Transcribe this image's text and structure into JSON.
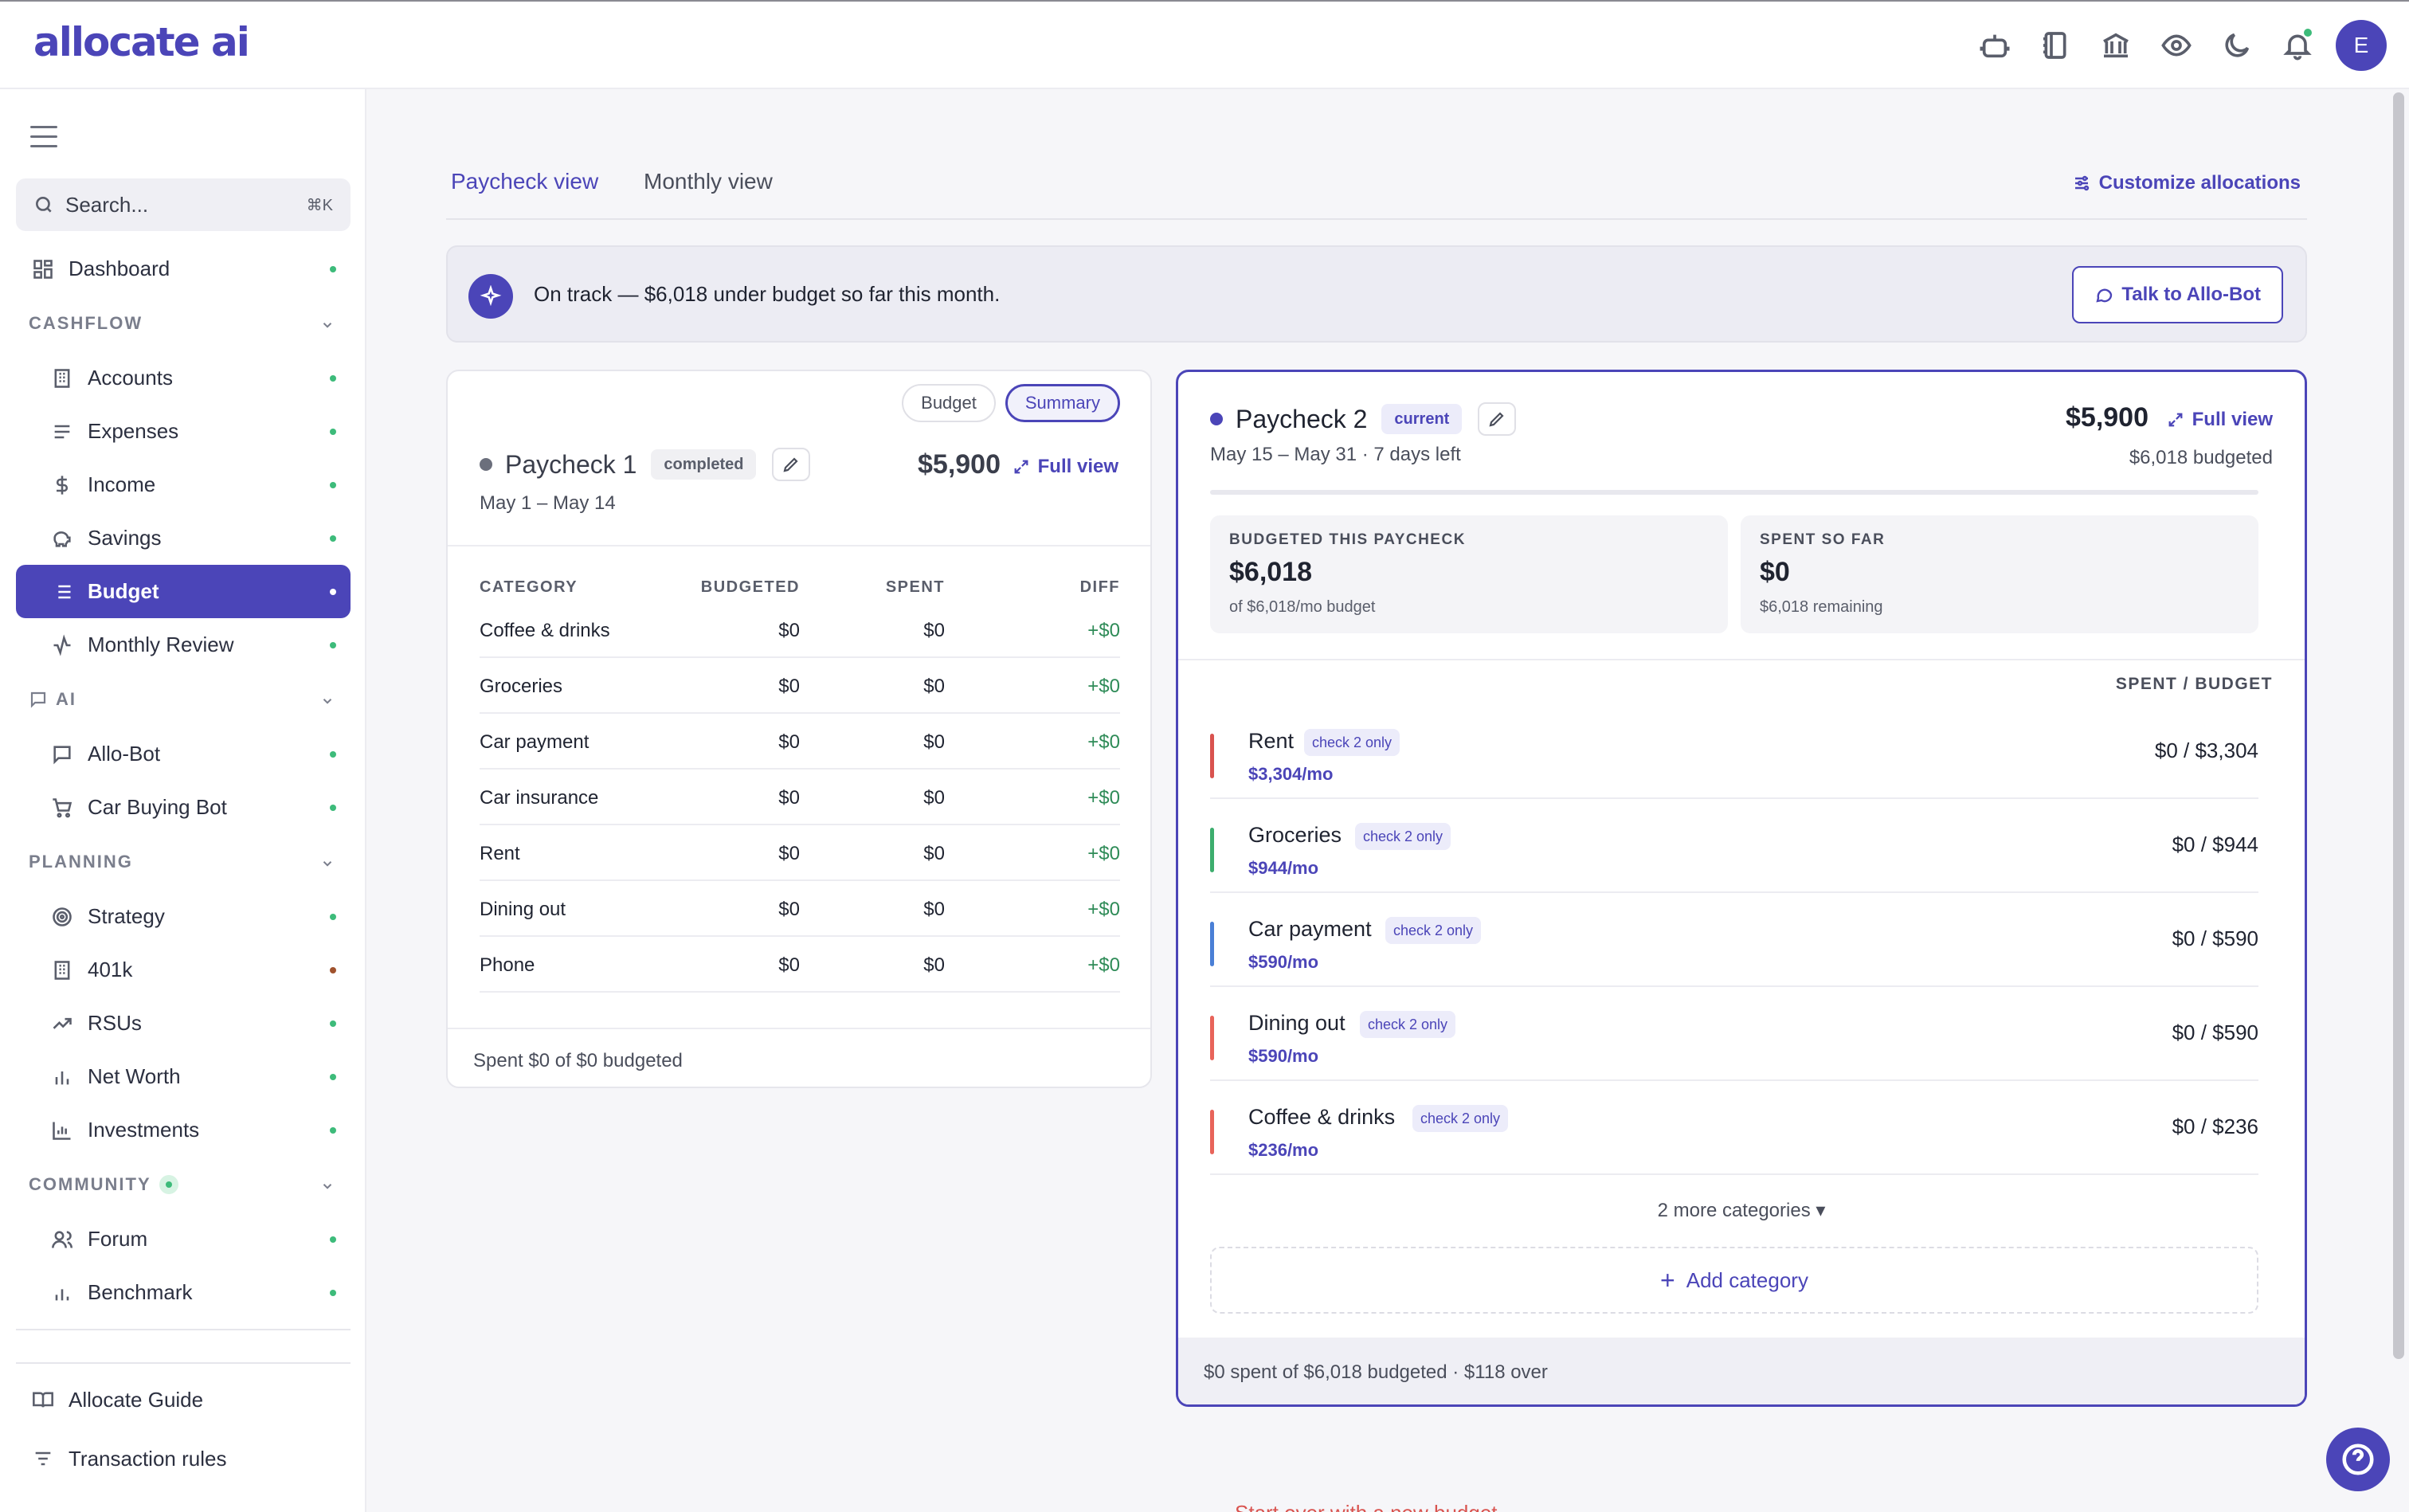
{
  "app": {
    "logo": "allocate ai",
    "avatar_initial": "E"
  },
  "sidebar": {
    "search": {
      "placeholder": "Search...",
      "shortcut": "⌘K"
    },
    "items": {
      "dashboard": "Dashboard",
      "accounts": "Accounts",
      "expenses": "Expenses",
      "income": "Income",
      "savings": "Savings",
      "budget": "Budget",
      "monthly_review": "Monthly Review",
      "allo_bot": "Allo-Bot",
      "car_buying_bot": "Car Buying Bot",
      "strategy": "Strategy",
      "k401": "401k",
      "rsus": "RSUs",
      "net_worth": "Net Worth",
      "investments": "Investments",
      "forum": "Forum",
      "benchmark": "Benchmark",
      "guide": "Allocate Guide",
      "rules": "Transaction rules"
    },
    "sections": {
      "cashflow": "CASHFLOW",
      "ai": "AI",
      "planning": "PLANNING",
      "community": "COMMUNITY"
    }
  },
  "main": {
    "tabs": {
      "paycheck": "Paycheck view",
      "monthly": "Monthly view"
    },
    "customize": "Customize allocations",
    "banner": {
      "text": "On track — $6,018 under budget so far this month.",
      "button": "Talk to Allo-Bot"
    },
    "paycheck1": {
      "seg_budget": "Budget",
      "seg_summary": "Summary",
      "title": "Paycheck 1",
      "badge": "completed",
      "dates": "May 1 – May 14",
      "amount": "$5,900",
      "full_view": "Full view",
      "headers": {
        "category": "CATEGORY",
        "budgeted": "BUDGETED",
        "spent": "SPENT",
        "diff": "DIFF"
      },
      "rows": [
        {
          "category": "Coffee & drinks",
          "budgeted": "$0",
          "spent": "$0",
          "diff": "+$0"
        },
        {
          "category": "Groceries",
          "budgeted": "$0",
          "spent": "$0",
          "diff": "+$0"
        },
        {
          "category": "Car payment",
          "budgeted": "$0",
          "spent": "$0",
          "diff": "+$0"
        },
        {
          "category": "Car insurance",
          "budgeted": "$0",
          "spent": "$0",
          "diff": "+$0"
        },
        {
          "category": "Rent",
          "budgeted": "$0",
          "spent": "$0",
          "diff": "+$0"
        },
        {
          "category": "Dining out",
          "budgeted": "$0",
          "spent": "$0",
          "diff": "+$0"
        },
        {
          "category": "Phone",
          "budgeted": "$0",
          "spent": "$0",
          "diff": "+$0"
        }
      ],
      "footer": "Spent $0 of $0 budgeted"
    },
    "paycheck2": {
      "title": "Paycheck 2",
      "badge": "current",
      "dates": "May 15 – May 31 · 7 days left",
      "amount": "$5,900",
      "full_view": "Full view",
      "budgeted": "$6,018 budgeted",
      "stat_budgeted": {
        "label": "BUDGETED THIS PAYCHECK",
        "value": "$6,018",
        "sub": "of $6,018/mo budget"
      },
      "stat_spent": {
        "label": "SPENT SO FAR",
        "value": "$0",
        "sub": "$6,018 remaining"
      },
      "spent_budget_label": "SPENT / BUDGET",
      "categories": [
        {
          "name": "Rent",
          "tag": "check 2 only",
          "monthly": "$3,304/mo",
          "amount": "$0 / $3,304",
          "color": "#d9534f"
        },
        {
          "name": "Groceries",
          "tag": "check 2 only",
          "monthly": "$944/mo",
          "amount": "$0 / $944",
          "color": "#3dae6e"
        },
        {
          "name": "Car payment",
          "tag": "check 2 only",
          "monthly": "$590/mo",
          "amount": "$0 / $590",
          "color": "#4a7fd6"
        },
        {
          "name": "Dining out",
          "tag": "check 2 only",
          "monthly": "$590/mo",
          "amount": "$0 / $590",
          "color": "#e8645a"
        },
        {
          "name": "Coffee & drinks",
          "tag": "check 2 only",
          "monthly": "$236/mo",
          "amount": "$0 / $236",
          "color": "#e8645a"
        }
      ],
      "more": "2 more categories ▾",
      "add_category": "Add category",
      "footer": "$0 spent of $6,018 budgeted · $118 over"
    },
    "cut_text": "Start over with a new budget"
  }
}
